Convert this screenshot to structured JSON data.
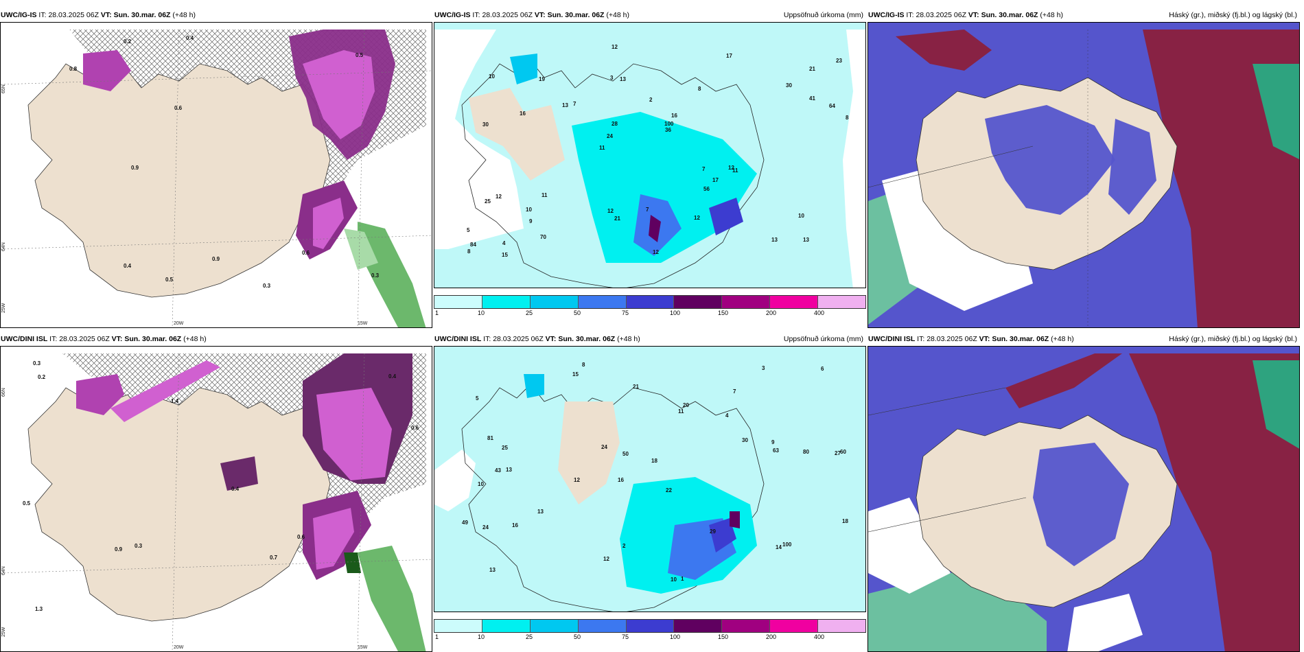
{
  "panels": {
    "p1": {
      "model": "UWC/IG-IS",
      "it_prefix": "IT:",
      "it": "28.03.2025 06Z",
      "vt_prefix": "VT:",
      "vt": "Sun. 30.mar. 06Z",
      "lead": "(+48 h)",
      "title": "",
      "axis": {
        "lon1": "20W",
        "lon2": "15W",
        "lat_left": "65N",
        "lat_bottom": "64N",
        "lon_left": "25W"
      }
    },
    "p2": {
      "model": "UWC/IG-IS",
      "it_prefix": "IT:",
      "it": "28.03.2025 06Z",
      "vt_prefix": "VT:",
      "vt": "Sun. 30.mar. 06Z",
      "lead": "(+48 h)",
      "title": "Uppsöfnuð úrkoma (mm)"
    },
    "p3": {
      "model": "UWC/IG-IS",
      "it_prefix": "IT:",
      "it": "28.03.2025 06Z",
      "vt_prefix": "VT:",
      "vt": "Sun. 30.mar. 06Z",
      "lead": "(+48 h)",
      "title": "Háský (gr.), miðský (fj.bl.) og lágský (bl.)"
    },
    "p4": {
      "model": "UWC/DINI ISL",
      "it_prefix": "IT:",
      "it": "28.03.2025 06Z",
      "vt_prefix": "VT:",
      "vt": "Sun. 30.mar. 06Z",
      "lead": "(+48 h)",
      "title": "",
      "axis": {
        "lon1": "20W",
        "lon2": "15W",
        "lat_left": "66N",
        "lat_bottom": "64N",
        "lon_left": "25W"
      }
    },
    "p5": {
      "model": "UWC/DINI ISL",
      "it_prefix": "IT:",
      "it": "28.03.2025 06Z",
      "vt_prefix": "VT:",
      "vt": "Sun. 30.mar. 06Z",
      "lead": "(+48 h)",
      "title": "Uppsöfnuð úrkoma (mm)"
    },
    "p6": {
      "model": "UWC/DINI ISL",
      "it_prefix": "IT:",
      "it": "28.03.2025 06Z",
      "vt_prefix": "VT:",
      "vt": "Sun. 30.mar. 06Z",
      "lead": "(+48 h)",
      "title": "Háský (gr.), miðský (fj.bl.) og lágský (bl.)"
    }
  },
  "precip_colorbar": {
    "labels": [
      "1",
      "10",
      "25",
      "50",
      "75",
      "100",
      "150",
      "200",
      "400"
    ],
    "colors": [
      "#ccfcfc",
      "#00f0f0",
      "#00c8f0",
      "#3c78f0",
      "#3c3cd0",
      "#600060",
      "#a00080",
      "#f000a0",
      "#f0b0f0"
    ]
  },
  "colors": {
    "land": "#ede0cf",
    "sea_precip": "#bff8f8",
    "cloud_low": "#5555cc",
    "cloud_high": "#882244",
    "cloud_mid": "#2ea37f",
    "ice_purple": "#b042b0"
  },
  "labels_precip_top": [
    "13",
    "30",
    "21",
    "11",
    "8",
    "4",
    "3",
    "2",
    "12",
    "7",
    "5",
    "9",
    "13",
    "16",
    "11",
    "10",
    "12",
    "8",
    "7",
    "41",
    "24",
    "12",
    "28",
    "19",
    "17",
    "11",
    "13",
    "10",
    "12",
    "12",
    "13",
    "16",
    "56",
    "70",
    "64",
    "100",
    "84",
    "21",
    "36",
    "25",
    "30",
    "23",
    "17",
    "12",
    "10",
    "15",
    "8",
    "7"
  ],
  "labels_precip_bottom": [
    "8",
    "7",
    "27",
    "16",
    "22",
    "13",
    "5",
    "4",
    "10",
    "11",
    "18",
    "13",
    "15",
    "12",
    "10",
    "1",
    "2",
    "3",
    "30",
    "13",
    "25",
    "43",
    "60",
    "80",
    "49",
    "81",
    "50",
    "63",
    "100",
    "24",
    "14",
    "20",
    "16",
    "24",
    "29",
    "18",
    "9",
    "12",
    "6",
    "21"
  ],
  "labels_ice_top": [
    "0.5",
    "0.3",
    "0.4",
    "0.6",
    "0.2",
    "0.8",
    "0.9",
    "0.3",
    "0.4",
    "0.6",
    "0.5",
    "0.9"
  ],
  "labels_ice_bottom": [
    "0.2",
    "0.3",
    "0.5",
    "0.4",
    "0.6",
    "0.7",
    "1.4",
    "0.3",
    "1.3",
    "0.6",
    "0.9",
    "0.4"
  ]
}
